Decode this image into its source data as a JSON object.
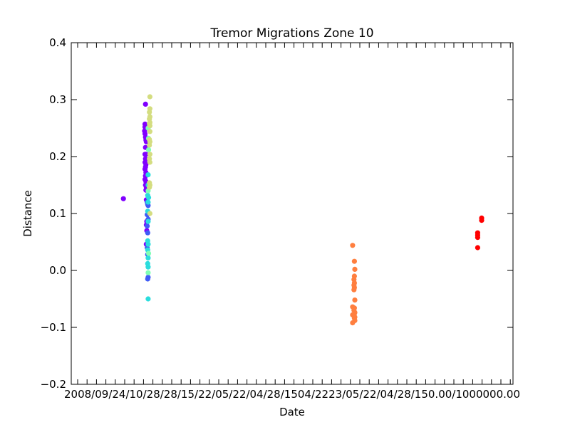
{
  "chart_data": {
    "type": "scatter",
    "title": "Tremor Migrations Zone 10",
    "xlabel": "Date",
    "ylabel": "Distance",
    "ylim": [
      -0.2,
      0.4
    ],
    "yticks": [
      "−0.2",
      "−0.1",
      "0.0",
      "0.1",
      "0.2",
      "0.3",
      "0.4"
    ],
    "ytick_values": [
      -0.2,
      -0.1,
      0.0,
      0.1,
      0.2,
      0.3,
      0.4
    ],
    "xtick_text": "2008/09/24/10/28/28/15/22/05/22/04/28/1504/2223/05/22/04/28/150.00/1000000.00",
    "grid": false,
    "legend": "none",
    "x_range_days": [
      0,
      1000
    ],
    "series": [
      {
        "color": "#8000ff",
        "points": [
          [
            118,
            0.126
          ]
        ]
      },
      {
        "color": "#8000ff",
        "points": [
          [
            168,
            0.292
          ],
          [
            167,
            0.257
          ],
          [
            167,
            0.252
          ],
          [
            166,
            0.245
          ],
          [
            167,
            0.24
          ],
          [
            168,
            0.234
          ],
          [
            169,
            0.229
          ],
          [
            170,
            0.226
          ],
          [
            168,
            0.216
          ],
          [
            167,
            0.204
          ],
          [
            169,
            0.204
          ],
          [
            168,
            0.196
          ],
          [
            167,
            0.19
          ],
          [
            169,
            0.186
          ],
          [
            168,
            0.182
          ],
          [
            167,
            0.178
          ],
          [
            169,
            0.172
          ],
          [
            168,
            0.166
          ],
          [
            167,
            0.16
          ],
          [
            169,
            0.156
          ],
          [
            168,
            0.15
          ],
          [
            170,
            0.146
          ],
          [
            169,
            0.141
          ],
          [
            170,
            0.124
          ],
          [
            171,
            0.086
          ],
          [
            170,
            0.08
          ],
          [
            171,
            0.07
          ],
          [
            170,
            0.046
          ]
        ]
      },
      {
        "color": "#3f5cf6",
        "points": [
          [
            172,
            0.12
          ],
          [
            173,
            0.116
          ],
          [
            174,
            0.114
          ],
          [
            172,
            0.098
          ],
          [
            174,
            0.09
          ],
          [
            172,
            0.078
          ],
          [
            173,
            0.066
          ],
          [
            172,
            0.04
          ],
          [
            173,
            0.028
          ],
          [
            174,
            -0.012
          ],
          [
            173,
            -0.015
          ]
        ]
      },
      {
        "color": "#2adddd",
        "points": [
          [
            174,
            0.168
          ],
          [
            174,
            0.15
          ],
          [
            173,
            0.132
          ],
          [
            175,
            0.128
          ],
          [
            174,
            0.12
          ],
          [
            173,
            0.104
          ],
          [
            174,
            0.086
          ],
          [
            173,
            0.052
          ],
          [
            174,
            0.046
          ],
          [
            173,
            0.036
          ],
          [
            174,
            0.022
          ],
          [
            173,
            0.012
          ],
          [
            174,
            0.006
          ],
          [
            174,
            -0.05
          ]
        ]
      },
      {
        "color": "#80ffb4",
        "points": [
          [
            174,
            0.25
          ],
          [
            175,
            0.232
          ],
          [
            175,
            0.212
          ],
          [
            174,
            0.14
          ],
          [
            175,
            0.03
          ],
          [
            174,
            -0.004
          ]
        ]
      },
      {
        "color": "#d4dd80",
        "points": [
          [
            178,
            0.305
          ],
          [
            178,
            0.284
          ],
          [
            177,
            0.278
          ],
          [
            178,
            0.27
          ],
          [
            177,
            0.266
          ],
          [
            178,
            0.26
          ],
          [
            177,
            0.258
          ],
          [
            178,
            0.254
          ],
          [
            178,
            0.244
          ],
          [
            177,
            0.23
          ],
          [
            178,
            0.226
          ],
          [
            177,
            0.22
          ],
          [
            178,
            0.204
          ],
          [
            177,
            0.196
          ],
          [
            178,
            0.19
          ],
          [
            177,
            0.154
          ],
          [
            178,
            0.15
          ],
          [
            177,
            0.146
          ],
          [
            178,
            0.1
          ]
        ]
      },
      {
        "color": "#ff7f3f",
        "points": [
          [
            637,
            0.044
          ],
          [
            641,
            0.016
          ],
          [
            642,
            0.002
          ],
          [
            641,
            -0.01
          ],
          [
            640,
            -0.016
          ],
          [
            641,
            -0.022
          ],
          [
            640,
            -0.026
          ],
          [
            641,
            -0.03
          ],
          [
            640,
            -0.034
          ],
          [
            642,
            -0.052
          ],
          [
            637,
            -0.064
          ],
          [
            641,
            -0.066
          ],
          [
            640,
            -0.07
          ],
          [
            642,
            -0.074
          ],
          [
            641,
            -0.076
          ],
          [
            637,
            -0.078
          ],
          [
            640,
            -0.08
          ],
          [
            642,
            -0.082
          ],
          [
            641,
            -0.084
          ],
          [
            642,
            -0.088
          ],
          [
            637,
            -0.092
          ]
        ]
      },
      {
        "color": "#ff0000",
        "points": [
          [
            929,
            0.092
          ],
          [
            929,
            0.088
          ],
          [
            920,
            0.066
          ],
          [
            920,
            0.062
          ],
          [
            920,
            0.058
          ],
          [
            920,
            0.04
          ]
        ]
      }
    ]
  }
}
